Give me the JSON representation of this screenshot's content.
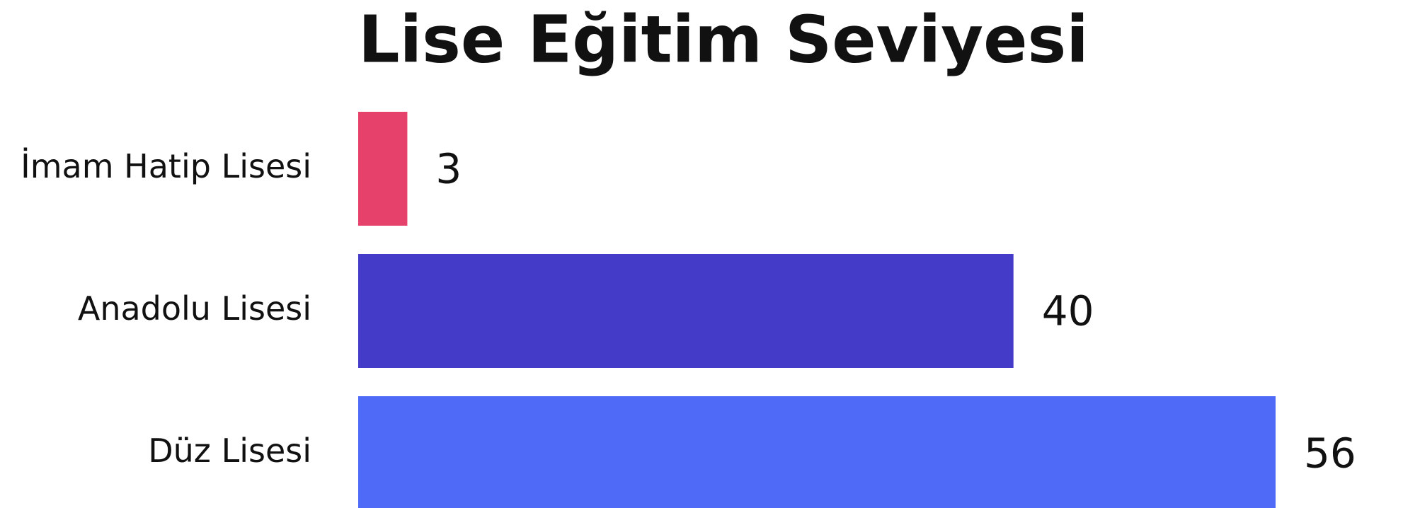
{
  "chart_data": {
    "type": "barh",
    "title": "Lise Eğitim Seviyesi",
    "categories": [
      "İmam Hatip Lisesi",
      "Anadolu Lisesi",
      "Düz Lisesi"
    ],
    "values": [
      3,
      40,
      56
    ],
    "colors": [
      "#e5416a",
      "#453bc9",
      "#4f6af7"
    ],
    "xlim": [
      0,
      56
    ]
  }
}
